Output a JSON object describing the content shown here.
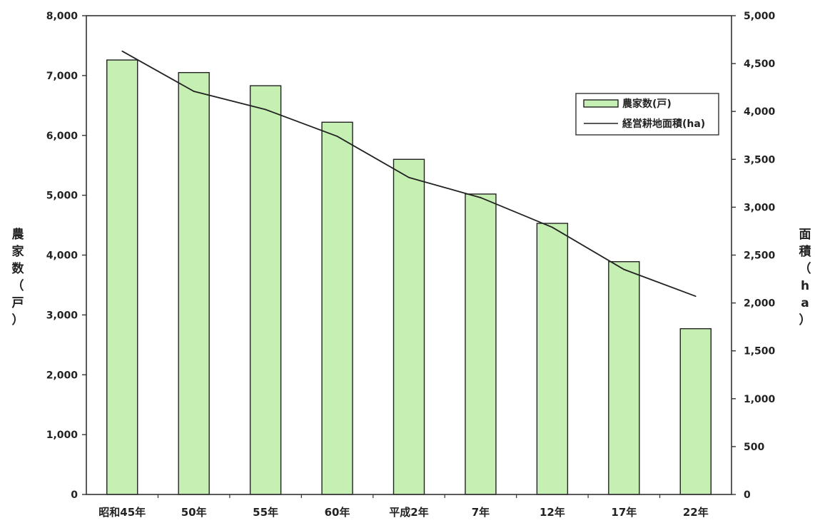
{
  "chart_data": {
    "type": "bar",
    "categories": [
      "昭和45年",
      "50年",
      "55年",
      "60年",
      "平成2年",
      "7年",
      "12年",
      "17年",
      "22年"
    ],
    "series": [
      {
        "name": "農家数(戸)",
        "kind": "bar",
        "axis": "left",
        "color": "#c6efb4",
        "edge_color": "#222222",
        "values": [
          7260,
          7050,
          6830,
          6220,
          5600,
          5020,
          4530,
          3890,
          2770
        ]
      },
      {
        "name": "経営耕地面積(ha)",
        "kind": "line",
        "axis": "right",
        "color": "#222222",
        "values": [
          4630,
          4210,
          4020,
          3740,
          3310,
          3100,
          2790,
          2350,
          2070
        ]
      }
    ],
    "left_axis": {
      "label_chars": [
        "農",
        "家",
        "数",
        "（",
        "戸",
        "）"
      ],
      "min": 0,
      "max": 8000,
      "ticks": [
        "0",
        "1,000",
        "2,000",
        "3,000",
        "4,000",
        "5,000",
        "6,000",
        "7,000",
        "8,000"
      ]
    },
    "right_axis": {
      "label_chars": [
        "面",
        "積",
        "（",
        "h",
        "a",
        "）"
      ],
      "min": 0,
      "max": 5000,
      "ticks": [
        "0",
        "500",
        "1,000",
        "1,500",
        "2,000",
        "2,500",
        "3,000",
        "3,500",
        "4,000",
        "4,500",
        "5,000"
      ]
    },
    "grid": false,
    "legend_position": "top-right"
  }
}
